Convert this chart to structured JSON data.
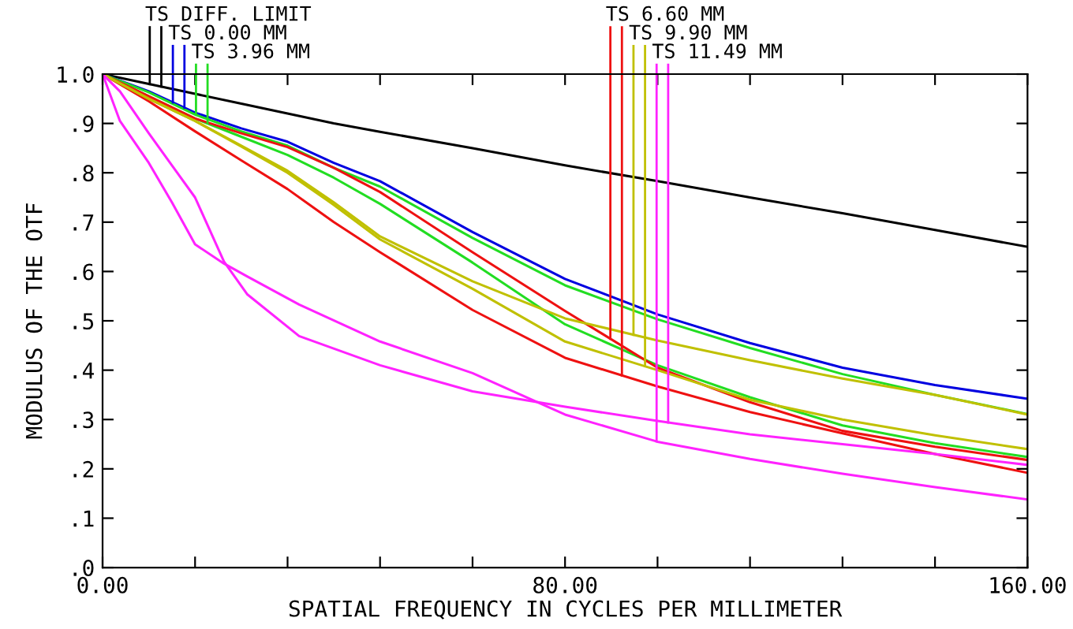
{
  "chart_data": {
    "type": "line",
    "xlabel": "SPATIAL FREQUENCY IN CYCLES PER MILLIMETER",
    "ylabel": "MODULUS OF THE OTF",
    "x": [
      0,
      8,
      16,
      24,
      32,
      40,
      48,
      64,
      80,
      96,
      112,
      128,
      144,
      160
    ],
    "series": [
      {
        "name": "TS DIFF. LIMIT",
        "color": "#000000",
        "values": [
          1.0,
          0.98,
          0.96,
          0.94,
          0.92,
          0.9,
          0.883,
          0.85,
          0.815,
          0.783,
          0.75,
          0.718,
          0.684,
          0.65
        ]
      },
      {
        "name": "TS 0.00 MM",
        "color": "#0000e0",
        "values": [
          1.0,
          0.965,
          0.922,
          0.89,
          0.863,
          0.82,
          0.783,
          0.68,
          0.585,
          0.513,
          0.455,
          0.405,
          0.37,
          0.342
        ]
      },
      {
        "name": "TS 3.96 MM",
        "color": "#22dd22",
        "values": [
          1.0,
          0.963,
          0.918,
          0.884,
          0.855,
          0.81,
          0.772,
          0.668,
          0.572,
          0.503,
          0.445,
          0.392,
          0.35,
          0.311
        ]
      },
      {
        "color": "#22dd22",
        "values": [
          1.0,
          0.955,
          0.91,
          0.873,
          0.836,
          0.79,
          0.737,
          0.618,
          0.493,
          0.41,
          0.345,
          0.288,
          0.252,
          0.224
        ]
      },
      {
        "name": "TS 6.60 MM",
        "color": "#ee1111",
        "values": [
          1.0,
          0.955,
          0.91,
          0.88,
          0.852,
          0.81,
          0.761,
          0.639,
          0.52,
          0.405,
          0.335,
          0.277,
          0.245,
          0.218
        ]
      },
      {
        "color": "#ee1111",
        "values": [
          1.0,
          0.945,
          0.884,
          0.825,
          0.767,
          0.7,
          0.639,
          0.522,
          0.425,
          0.367,
          0.315,
          0.272,
          0.23,
          0.192
        ]
      },
      {
        "name": "TS 9.90 MM",
        "color": "#c0c000",
        "values": [
          1.0,
          0.95,
          0.905,
          0.855,
          0.804,
          0.74,
          0.671,
          0.58,
          0.505,
          0.46,
          0.42,
          0.383,
          0.35,
          0.31
        ]
      },
      {
        "color": "#c0c000",
        "values": [
          1.0,
          0.95,
          0.905,
          0.853,
          0.8,
          0.735,
          0.665,
          0.565,
          0.458,
          0.4,
          0.34,
          0.3,
          0.268,
          0.24
        ]
      },
      {
        "name": "TS 11.49 MM",
        "color": "#ff22ff",
        "x": [
          0,
          3,
          8,
          12,
          16,
          21,
          25,
          34,
          48,
          64,
          80,
          96,
          112,
          128,
          144,
          160
        ],
        "values": [
          1.0,
          0.905,
          0.82,
          0.74,
          0.655,
          0.616,
          0.59,
          0.533,
          0.458,
          0.394,
          0.31,
          0.255,
          0.22,
          0.19,
          0.163,
          0.138
        ]
      },
      {
        "color": "#ff22ff",
        "x": [
          0,
          3,
          8,
          12,
          16,
          21,
          25,
          34,
          48,
          64,
          80,
          96,
          112,
          128,
          144,
          160
        ],
        "values": [
          1.0,
          0.965,
          0.88,
          0.815,
          0.75,
          0.62,
          0.554,
          0.469,
          0.41,
          0.357,
          0.326,
          0.297,
          0.27,
          0.25,
          0.23,
          0.208
        ]
      }
    ],
    "xlim": [
      0,
      160
    ],
    "xticks": [
      {
        "value": 0,
        "label": "0.00"
      },
      {
        "value": 16,
        "label": null
      },
      {
        "value": 32,
        "label": null
      },
      {
        "value": 48,
        "label": null
      },
      {
        "value": 64,
        "label": null
      },
      {
        "value": 80,
        "label": "80.00"
      },
      {
        "value": 96,
        "label": null
      },
      {
        "value": 112,
        "label": null
      },
      {
        "value": 128,
        "label": null
      },
      {
        "value": 144,
        "label": null
      },
      {
        "value": 160,
        "label": "160.00"
      }
    ],
    "ylim": [
      0,
      1
    ],
    "yticks": [
      {
        "value": 0,
        "label": ".0"
      },
      {
        "value": 0.1,
        "label": ".1"
      },
      {
        "value": 0.2,
        "label": ".2"
      },
      {
        "value": 0.3,
        "label": ".3"
      },
      {
        "value": 0.4,
        "label": ".4"
      },
      {
        "value": 0.5,
        "label": ".5"
      },
      {
        "value": 0.6,
        "label": ".6"
      },
      {
        "value": 0.7,
        "label": ".7"
      },
      {
        "value": 0.8,
        "label": ".8"
      },
      {
        "value": 0.9,
        "label": ".9"
      },
      {
        "value": 1.0,
        "label": "1.0"
      }
    ],
    "grid": false,
    "legend": "top",
    "marker": "none",
    "line_style": "solid"
  }
}
